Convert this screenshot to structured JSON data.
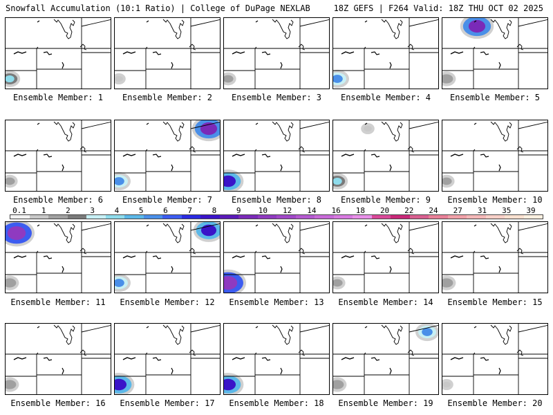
{
  "header": {
    "title": "Snowfall Accumulation (10:1 Ratio) | College of DuPage NEXLAB",
    "run_info": "18Z GEFS | F264 Valid: 18Z THU OCT 02 2025"
  },
  "members": [
    {
      "label": "Ensemble Member: 1",
      "snow": [
        {
          "region": "sw",
          "level": 4
        }
      ]
    },
    {
      "label": "Ensemble Member: 2",
      "snow": [
        {
          "region": "sw",
          "level": 1
        }
      ]
    },
    {
      "label": "Ensemble Member: 3",
      "snow": [
        {
          "region": "sw",
          "level": 2
        }
      ]
    },
    {
      "label": "Ensemble Member: 4",
      "snow": [
        {
          "region": "sw",
          "level": 5
        }
      ]
    },
    {
      "label": "Ensemble Member: 5",
      "snow": [
        {
          "region": "n",
          "level": 9
        },
        {
          "region": "sw",
          "level": 3
        }
      ]
    },
    {
      "label": "Ensemble Member: 6",
      "snow": [
        {
          "region": "sw",
          "level": 2
        }
      ]
    },
    {
      "label": "Ensemble Member: 7",
      "snow": [
        {
          "region": "ne",
          "level": 9
        },
        {
          "region": "sw",
          "level": 5
        }
      ]
    },
    {
      "label": "Ensemble Member: 8",
      "snow": [
        {
          "region": "sw",
          "level": 8
        }
      ]
    },
    {
      "label": "Ensemble Member: 9",
      "snow": [
        {
          "region": "sw",
          "level": 4
        },
        {
          "region": "n",
          "level": 1
        }
      ]
    },
    {
      "label": "Ensemble Member: 10",
      "snow": [
        {
          "region": "sw",
          "level": 2
        }
      ]
    },
    {
      "label": "Ensemble Member: 11",
      "snow": [
        {
          "region": "nw",
          "level": 10
        },
        {
          "region": "sw",
          "level": 3
        }
      ]
    },
    {
      "label": "Ensemble Member: 12",
      "snow": [
        {
          "region": "ne",
          "level": 8
        },
        {
          "region": "sw",
          "level": 5
        }
      ]
    },
    {
      "label": "Ensemble Member: 13",
      "snow": [
        {
          "region": "sw",
          "level": 10
        }
      ]
    },
    {
      "label": "Ensemble Member: 14",
      "snow": [
        {
          "region": "sw",
          "level": 2
        }
      ]
    },
    {
      "label": "Ensemble Member: 15",
      "snow": [
        {
          "region": "sw",
          "level": 3
        }
      ]
    },
    {
      "label": "Ensemble Member: 16",
      "snow": [
        {
          "region": "sw",
          "level": 3
        }
      ]
    },
    {
      "label": "Ensemble Member: 17",
      "snow": [
        {
          "region": "sw",
          "level": 8
        }
      ]
    },
    {
      "label": "Ensemble Member: 18",
      "snow": [
        {
          "region": "sw",
          "level": 8
        }
      ]
    },
    {
      "label": "Ensemble Member: 19",
      "snow": [
        {
          "region": "ne",
          "level": 5
        },
        {
          "region": "sw",
          "level": 3
        }
      ]
    },
    {
      "label": "Ensemble Member: 20",
      "snow": [
        {
          "region": "sw",
          "level": 1
        }
      ]
    }
  ],
  "legend": {
    "ticks": [
      "0.1",
      "1",
      "2",
      "3",
      "4",
      "5",
      "6",
      "7",
      "8",
      "9",
      "10",
      "12",
      "14",
      "16",
      "18",
      "20",
      "22",
      "24",
      "27",
      "31",
      "35",
      "39"
    ],
    "colors": [
      "#f2f2f2",
      "#c8c8c8",
      "#a0a0a0",
      "#7a7a7a",
      "#c8f0f5",
      "#8fdcec",
      "#5cb8e8",
      "#4a8fe8",
      "#3c5cf0",
      "#2a2ae0",
      "#3a14c8",
      "#5a1ab8",
      "#7a2ab8",
      "#8f3ac0",
      "#a048c8",
      "#b45ad0",
      "#c86ad8",
      "#d87ae0",
      "#e890e8",
      "#d84898",
      "#c82878",
      "#d86090",
      "#e88098",
      "#f0a0a8",
      "#f4b8b8",
      "#f8d0c8",
      "#fae0d0",
      "#fcf0e0"
    ]
  }
}
